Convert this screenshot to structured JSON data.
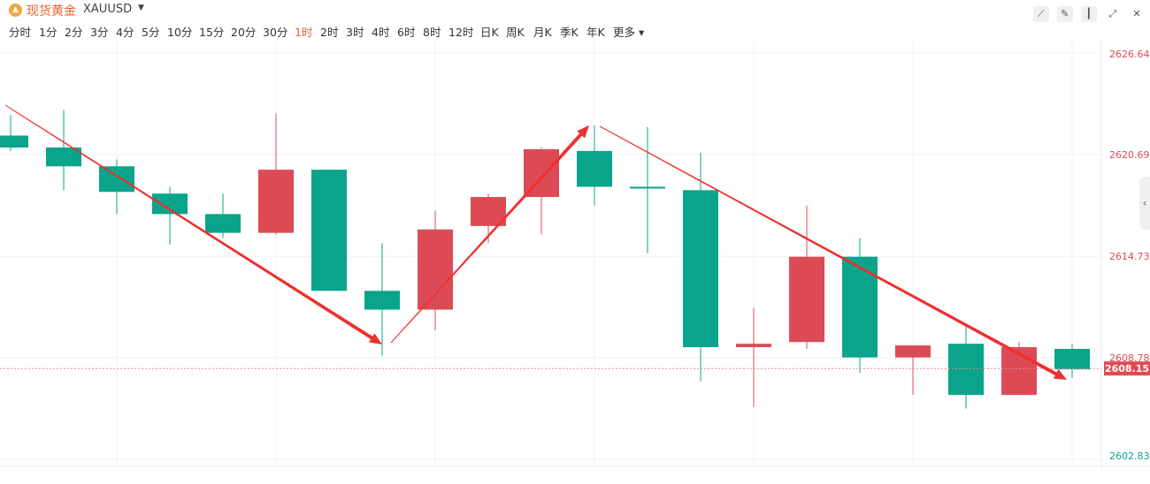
{
  "header": {
    "instrument_name": "现货黄金",
    "instrument_code": "XAUUSD",
    "logo_icon": "gold-bars-icon",
    "caret_icon": "caret-down-icon",
    "tools": [
      "line-tool-icon",
      "pencil-icon",
      "candlestick-type-icon",
      "expand-icon",
      "close-icon"
    ]
  },
  "periods": {
    "items": [
      "分时",
      "1分",
      "2分",
      "3分",
      "4分",
      "5分",
      "10分",
      "15分",
      "20分",
      "30分",
      "1时",
      "2时",
      "3时",
      "4时",
      "6时",
      "8时",
      "12时",
      "日K",
      "周K",
      "月K",
      "季K",
      "年K",
      "更多"
    ],
    "active": "1时"
  },
  "colors": {
    "up": "#dc4b55",
    "down": "#0aa48a",
    "accent": "#e8622c",
    "arrow": "#ee3030"
  },
  "chart_data": {
    "type": "candlestick",
    "y_ticks": [
      2626.64,
      2620.69,
      2614.73,
      2608.78,
      2602.83
    ],
    "y_tick_labels": [
      "2626.64",
      "2620.69",
      "2614.73",
      "2608.78",
      "2602.83"
    ],
    "ylim": [
      2602.83,
      2626.64
    ],
    "current_price": 2608.15,
    "current_price_label": "2608.15",
    "grid": true,
    "candles": [
      {
        "o": 2621.8,
        "h": 2623.0,
        "l": 2620.9,
        "c": 2621.1
      },
      {
        "o": 2621.1,
        "h": 2623.3,
        "l": 2618.6,
        "c": 2620.0
      },
      {
        "o": 2620.0,
        "h": 2620.4,
        "l": 2617.2,
        "c": 2618.5
      },
      {
        "o": 2618.4,
        "h": 2618.8,
        "l": 2615.4,
        "c": 2617.2
      },
      {
        "o": 2617.2,
        "h": 2618.4,
        "l": 2615.8,
        "c": 2616.1
      },
      {
        "o": 2616.1,
        "h": 2623.1,
        "l": 2616.0,
        "c": 2619.8
      },
      {
        "o": 2619.8,
        "h": 2619.8,
        "l": 2612.8,
        "c": 2612.7
      },
      {
        "o": 2612.7,
        "h": 2615.5,
        "l": 2608.9,
        "c": 2611.6
      },
      {
        "o": 2611.6,
        "h": 2617.4,
        "l": 2610.4,
        "c": 2616.3
      },
      {
        "o": 2616.5,
        "h": 2618.4,
        "l": 2615.5,
        "c": 2618.2
      },
      {
        "o": 2618.2,
        "h": 2621.1,
        "l": 2616.0,
        "c": 2621.0
      },
      {
        "o": 2620.9,
        "h": 2622.4,
        "l": 2617.7,
        "c": 2618.8
      },
      {
        "o": 2618.8,
        "h": 2622.3,
        "l": 2614.9,
        "c": 2618.7
      },
      {
        "o": 2618.6,
        "h": 2620.8,
        "l": 2607.4,
        "c": 2609.4
      },
      {
        "o": 2609.4,
        "h": 2611.7,
        "l": 2605.9,
        "c": 2609.6
      },
      {
        "o": 2609.7,
        "h": 2617.7,
        "l": 2609.3,
        "c": 2614.7
      },
      {
        "o": 2614.7,
        "h": 2615.8,
        "l": 2607.9,
        "c": 2608.8
      },
      {
        "o": 2608.8,
        "h": 2609.3,
        "l": 2606.6,
        "c": 2609.5
      },
      {
        "o": 2609.6,
        "h": 2610.6,
        "l": 2605.8,
        "c": 2606.6
      },
      {
        "o": 2606.6,
        "h": 2609.7,
        "l": 2606.6,
        "c": 2609.4
      },
      {
        "o": 2609.3,
        "h": 2609.6,
        "l": 2607.6,
        "c": 2608.1
      }
    ]
  }
}
